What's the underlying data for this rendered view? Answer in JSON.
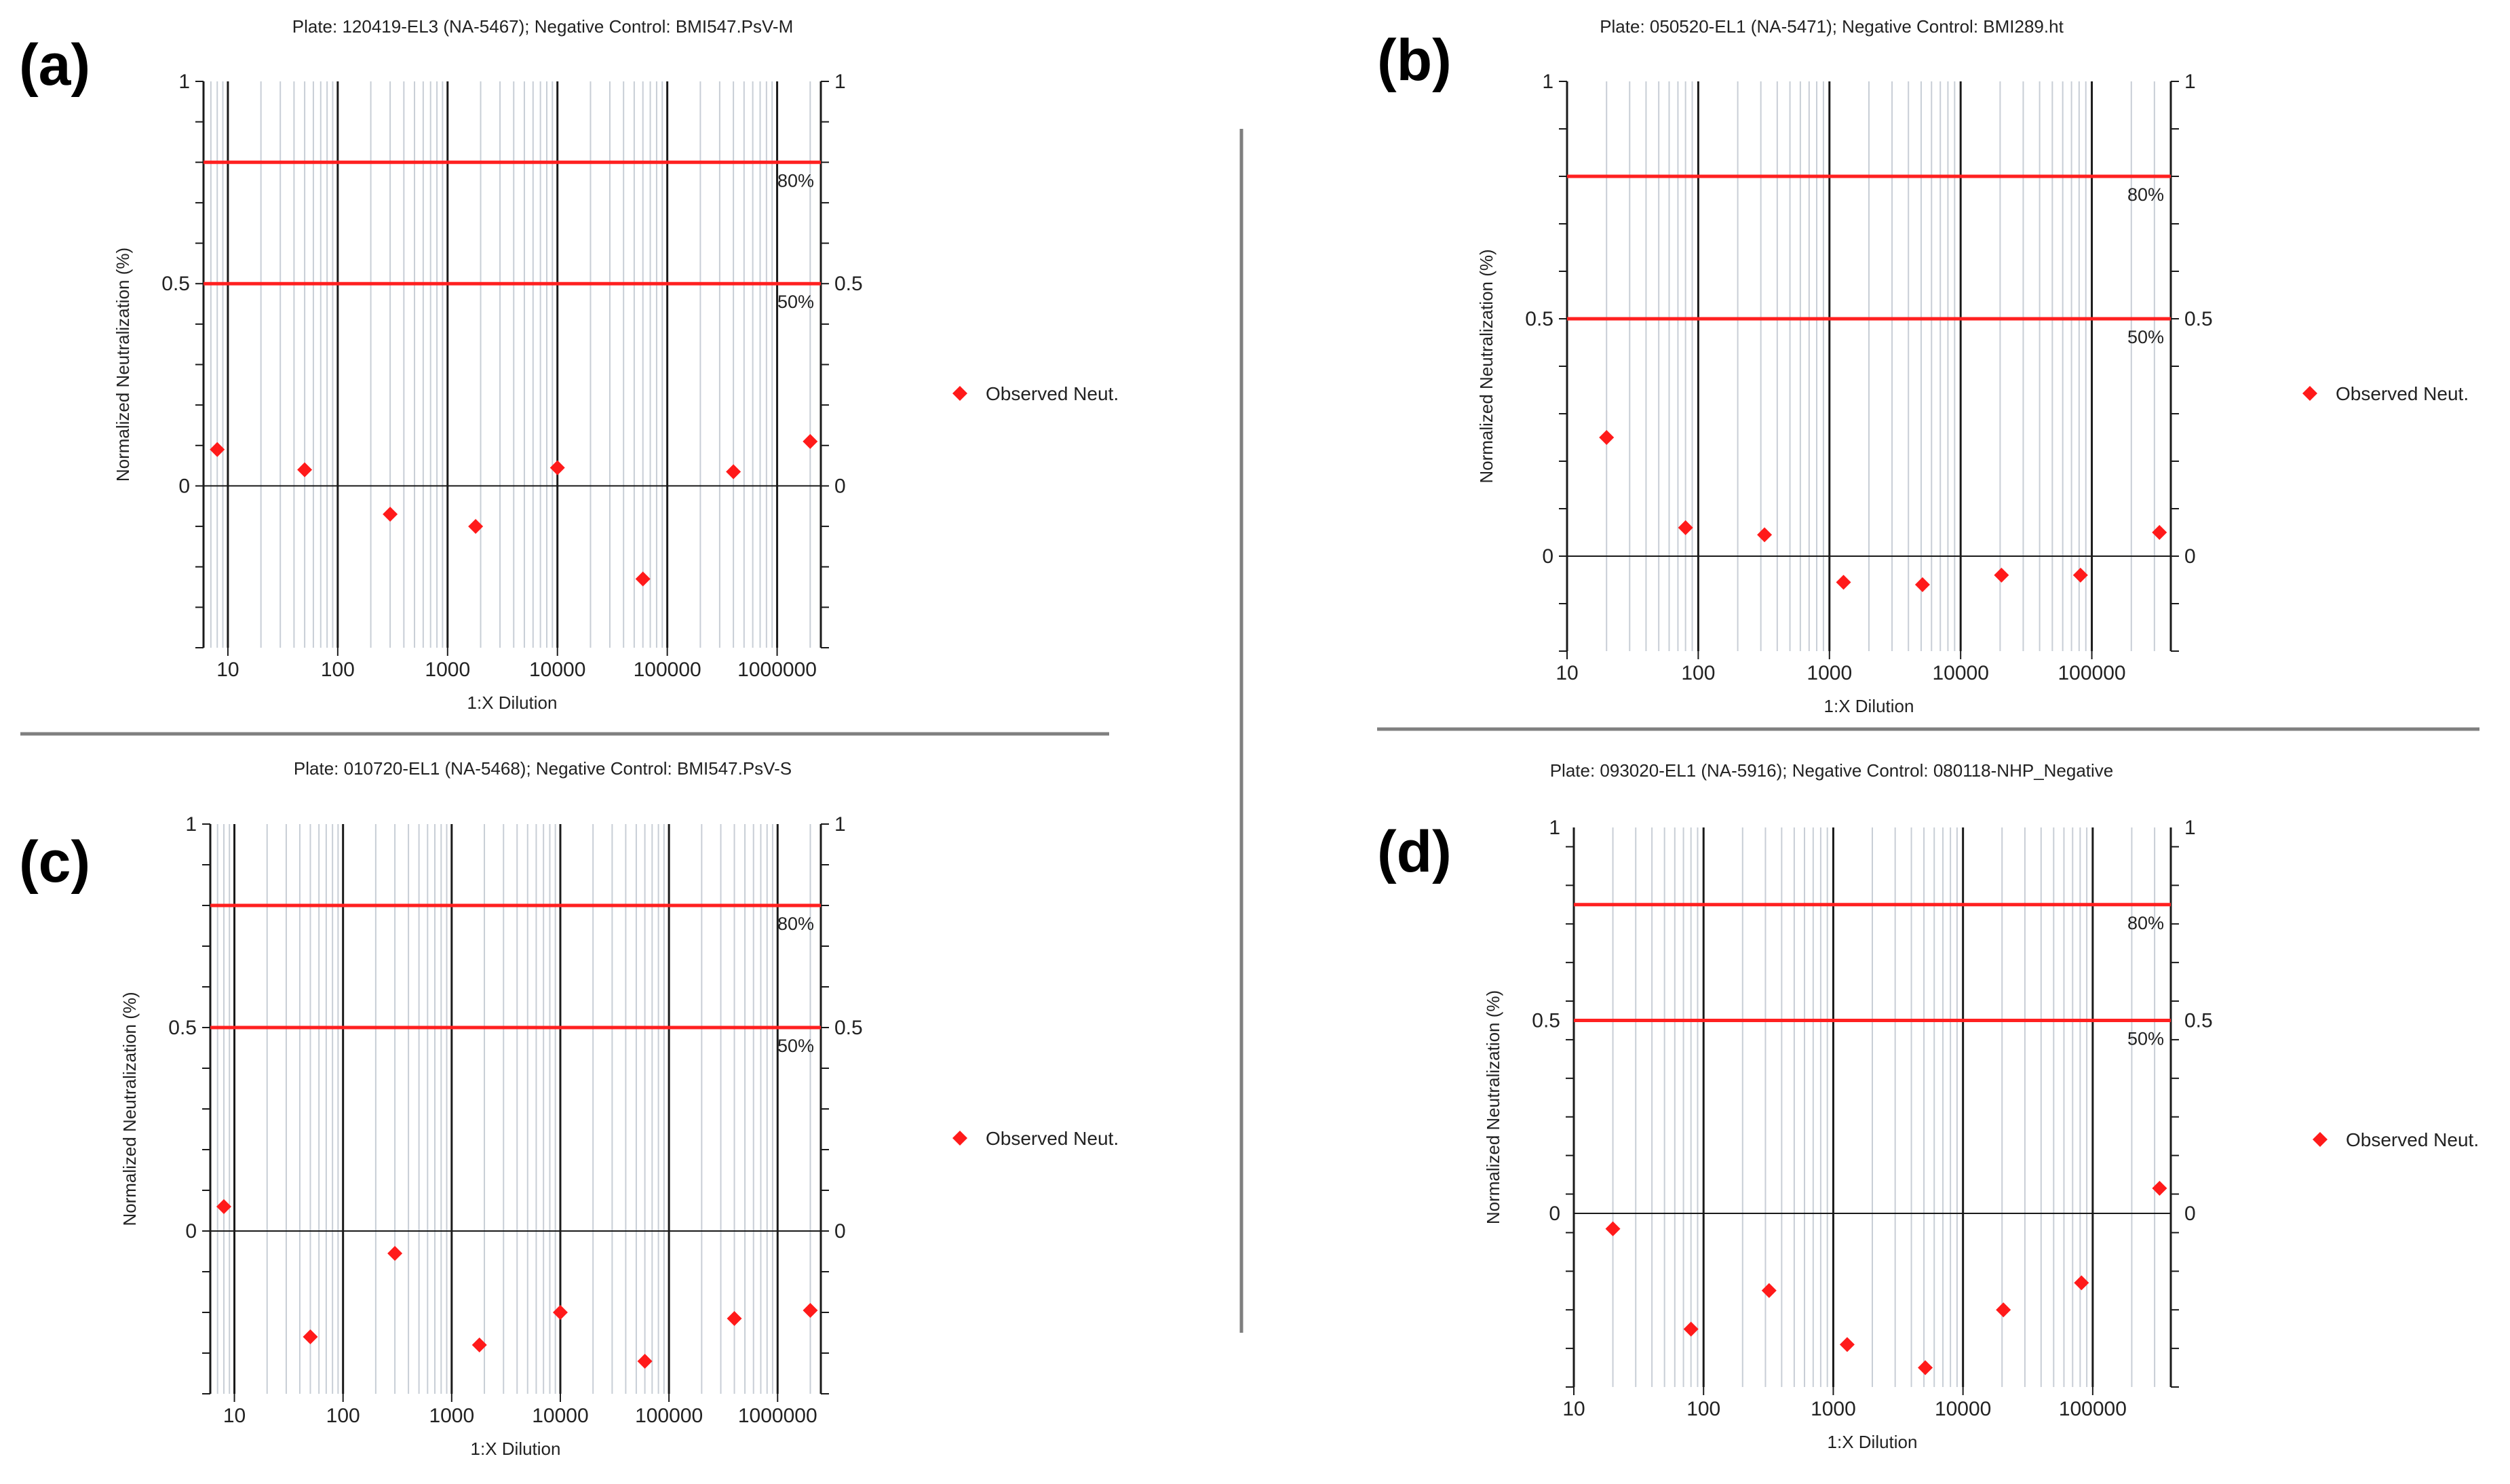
{
  "figure": {
    "divider_color": "#7f7f7f"
  },
  "colors": {
    "threshold": "#ff2020",
    "marker": "#ff1a1a",
    "major_grid": "#1a1a1a",
    "minor_grid": "#c8ced6",
    "zero_line": "#1a1a1a"
  },
  "chart_data": [
    {
      "id": "a",
      "panel_label": "(a)",
      "type": "scatter",
      "title": "Plate: 120419-EL3 (NA-5467); Negative Control: BMI547.PsV-M",
      "xlabel": "1:X Dilution",
      "ylabel": "Normalized Neutralization (%)",
      "xscale": "log",
      "xlim": [
        6,
        2500000
      ],
      "x_ticks": [
        10,
        100,
        1000,
        10000,
        100000,
        1000000
      ],
      "x_tick_labels": [
        "10",
        "100",
        "1000",
        "10000",
        "100000",
        "1000000"
      ],
      "ylim": [
        -0.4,
        1.0
      ],
      "y_ticks": [
        1,
        0.5,
        0
      ],
      "y_tick_labels": [
        "1",
        "0.5",
        "0"
      ],
      "thresholds": [
        {
          "value": 0.8,
          "label": "80%"
        },
        {
          "value": 0.5,
          "label": "50%"
        }
      ],
      "legend": "Observed Neut.",
      "series": [
        {
          "name": "Observed Neut.",
          "x": [
            8,
            50,
            300,
            1800,
            10000,
            60000,
            400000,
            2000000
          ],
          "y": [
            0.09,
            0.04,
            -0.07,
            -0.1,
            0.045,
            -0.23,
            0.035,
            0.11
          ]
        }
      ]
    },
    {
      "id": "b",
      "panel_label": "(b)",
      "type": "scatter",
      "title": "Plate: 050520-EL1 (NA-5471); Negative Control: BMI289.ht",
      "xlabel": "1:X Dilution",
      "ylabel": "Normalized Neutralization (%)",
      "xscale": "log",
      "xlim": [
        10,
        400000
      ],
      "x_ticks": [
        10,
        100,
        1000,
        10000,
        100000
      ],
      "x_tick_labels": [
        "10",
        "100",
        "1000",
        "10000",
        "100000"
      ],
      "ylim": [
        -0.2,
        1.0
      ],
      "y_ticks": [
        1,
        0.5,
        0
      ],
      "y_tick_labels": [
        "1",
        "0.5",
        "0"
      ],
      "thresholds": [
        {
          "value": 0.8,
          "label": "80%"
        },
        {
          "value": 0.5,
          "label": "50%"
        }
      ],
      "legend": "Observed Neut.",
      "series": [
        {
          "name": "Observed Neut.",
          "x": [
            20,
            80,
            320,
            1280,
            5120,
            20480,
            81920,
            327680
          ],
          "y": [
            0.25,
            0.06,
            0.045,
            -0.055,
            -0.06,
            -0.04,
            -0.04,
            0.05
          ]
        }
      ]
    },
    {
      "id": "c",
      "panel_label": "(c)",
      "type": "scatter",
      "title": "Plate: 010720-EL1 (NA-5468); Negative Control: BMI547.PsV-S",
      "xlabel": "1:X Dilution",
      "ylabel": "Normalized Neutralization (%)",
      "xscale": "log",
      "xlim": [
        6,
        2500000
      ],
      "x_ticks": [
        10,
        100,
        1000,
        10000,
        100000,
        1000000
      ],
      "x_tick_labels": [
        "10",
        "100",
        "1000",
        "10000",
        "100000",
        "1000000"
      ],
      "ylim": [
        -0.4,
        1.0
      ],
      "y_ticks": [
        1,
        0.5,
        0
      ],
      "y_tick_labels": [
        "1",
        "0.5",
        "0"
      ],
      "thresholds": [
        {
          "value": 0.8,
          "label": "80%"
        },
        {
          "value": 0.5,
          "label": "50%"
        }
      ],
      "legend": "Observed Neut.",
      "series": [
        {
          "name": "Observed Neut.",
          "x": [
            8,
            50,
            300,
            1800,
            10000,
            60000,
            400000,
            2000000
          ],
          "y": [
            0.06,
            -0.26,
            -0.055,
            -0.28,
            -0.2,
            -0.32,
            -0.215,
            -0.195
          ]
        }
      ]
    },
    {
      "id": "d",
      "panel_label": "(d)",
      "type": "scatter",
      "title": "Plate: 093020-EL1 (NA-5916); Negative Control: 080118-NHP_Negative",
      "xlabel": "1:X Dilution",
      "ylabel": "Normalized Neutralization (%)",
      "xscale": "log",
      "xlim": [
        10,
        400000
      ],
      "x_ticks": [
        10,
        100,
        1000,
        10000,
        100000
      ],
      "x_tick_labels": [
        "10",
        "100",
        "1000",
        "10000",
        "100000"
      ],
      "ylim": [
        -0.45,
        1.0
      ],
      "y_ticks": [
        1,
        0.5,
        0
      ],
      "y_tick_labels": [
        "1",
        "0.5",
        "0"
      ],
      "thresholds": [
        {
          "value": 0.8,
          "label": "80%"
        },
        {
          "value": 0.5,
          "label": "50%"
        }
      ],
      "legend": "Observed Neut.",
      "series": [
        {
          "name": "Observed Neut.",
          "x": [
            20,
            80,
            320,
            1280,
            5120,
            20480,
            81920,
            327680
          ],
          "y": [
            -0.04,
            -0.3,
            -0.2,
            -0.34,
            -0.4,
            -0.25,
            -0.18,
            0.065
          ]
        }
      ]
    }
  ]
}
